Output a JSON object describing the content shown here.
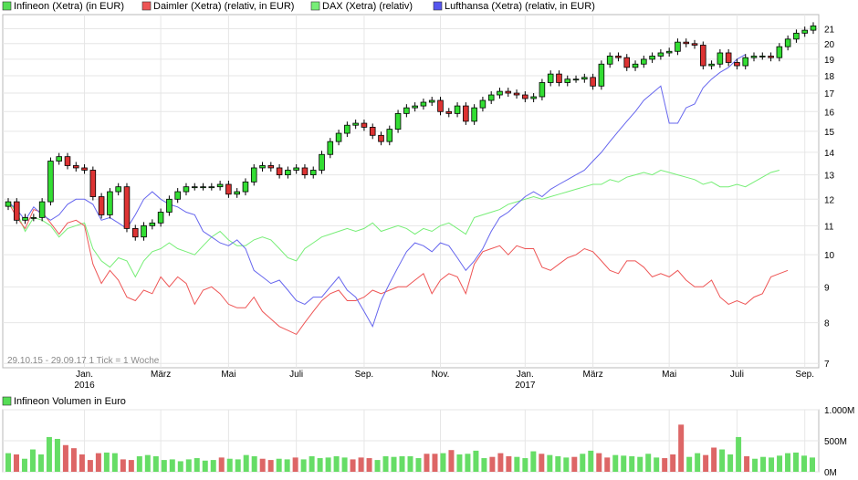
{
  "chart_data": [
    {
      "type": "candlestick",
      "legend": [
        {
          "label": "Infineon (Xetra) (in EUR)",
          "color": "#55dd55"
        },
        {
          "label": "Daimler (Xetra) (relativ, in EUR)",
          "color": "#ee5555"
        },
        {
          "label": "DAX (Xetra) (relativ)",
          "color": "#77ee77"
        },
        {
          "label": "Lufthansa (Xetra) (relativ, in EUR)",
          "color": "#5555ee"
        }
      ],
      "info": "29.10.15 - 29.09.17   1 Tick = 1 Woche",
      "x_tick_labels": [
        "Jan.",
        "März",
        "Mai",
        "Juli",
        "Sep.",
        "Nov.",
        "Jan.",
        "März",
        "Mai",
        "Juli",
        "Sep."
      ],
      "x_tick_weeks": [
        9,
        18,
        26,
        34,
        42,
        51,
        61,
        69,
        78,
        86,
        94
      ],
      "year_labels": [
        {
          "label": "2016",
          "week": 9
        },
        {
          "label": "2017",
          "week": 61
        }
      ],
      "y_scale": "log",
      "ylim": [
        6.9,
        22
      ],
      "y_ticks": [
        7,
        8,
        9,
        10,
        11,
        12,
        13,
        14,
        15,
        16,
        17,
        18,
        19,
        20,
        21
      ],
      "candle_up_color": "#33dd33",
      "candle_down_color": "#dd3333",
      "infineon_close": [
        11.9,
        11.2,
        11.3,
        11.3,
        11.9,
        13.6,
        13.8,
        13.4,
        13.3,
        13.2,
        12.1,
        11.4,
        12.3,
        12.5,
        10.9,
        10.6,
        11.0,
        11.1,
        11.5,
        12.0,
        12.3,
        12.5,
        12.5,
        12.5,
        12.5,
        12.6,
        12.2,
        12.3,
        12.7,
        13.3,
        13.4,
        13.3,
        13.0,
        13.2,
        13.3,
        13.0,
        13.2,
        13.9,
        14.5,
        14.9,
        15.3,
        15.4,
        15.2,
        14.8,
        14.5,
        15.1,
        15.9,
        16.2,
        16.3,
        16.5,
        16.6,
        16.0,
        15.9,
        16.3,
        15.5,
        16.2,
        16.6,
        16.9,
        17.1,
        17.0,
        16.9,
        16.7,
        16.8,
        17.6,
        18.1,
        17.6,
        17.8,
        17.8,
        17.9,
        17.4,
        18.7,
        19.2,
        19.1,
        18.5,
        18.7,
        19.0,
        19.2,
        19.4,
        19.5,
        20.1,
        20.0,
        19.9,
        18.6,
        18.7,
        19.4,
        18.8,
        18.6,
        19.1,
        19.2,
        19.2,
        19.1,
        19.8,
        20.3,
        20.7,
        20.9,
        21.2
      ],
      "daimler_rel": [
        11.9,
        11.3,
        10.9,
        11.6,
        11.5,
        11.1,
        10.7,
        11.1,
        11.2,
        11.0,
        9.7,
        9.1,
        9.5,
        9.2,
        8.7,
        8.6,
        8.9,
        8.8,
        9.3,
        9.0,
        9.3,
        9.1,
        8.5,
        8.9,
        9.0,
        8.8,
        8.5,
        8.4,
        8.4,
        8.7,
        8.3,
        8.1,
        7.9,
        7.8,
        7.7,
        8.0,
        8.3,
        8.6,
        8.8,
        8.9,
        8.6,
        8.6,
        8.7,
        8.9,
        8.8,
        8.9,
        9.0,
        9.0,
        9.2,
        9.4,
        8.8,
        9.2,
        9.4,
        9.3,
        8.8,
        9.7,
        10.1,
        10.2,
        10.3,
        10.0,
        10.3,
        10.2,
        10.2,
        9.6,
        9.5,
        9.7,
        9.9,
        10.0,
        10.2,
        10.1,
        9.8,
        9.5,
        9.4,
        9.8,
        9.8,
        9.6,
        9.3,
        9.4,
        9.3,
        9.5,
        9.2,
        9.0,
        9.0,
        9.2,
        8.7,
        8.5,
        8.6,
        8.5,
        8.7,
        8.8,
        9.3,
        9.4,
        9.5
      ],
      "dax_rel": [
        11.9,
        11.5,
        10.8,
        11.3,
        11.2,
        11.0,
        10.6,
        10.9,
        11.0,
        11.1,
        10.2,
        9.8,
        9.6,
        9.9,
        9.8,
        9.3,
        9.8,
        10.1,
        10.2,
        10.4,
        10.2,
        10.1,
        10.0,
        10.3,
        10.6,
        10.8,
        10.5,
        10.3,
        10.3,
        10.5,
        10.6,
        10.5,
        10.2,
        9.9,
        9.8,
        10.2,
        10.4,
        10.6,
        10.7,
        10.8,
        10.9,
        10.8,
        10.9,
        11.1,
        10.8,
        10.9,
        11.0,
        10.9,
        10.7,
        10.9,
        10.8,
        11.0,
        11.1,
        10.9,
        10.7,
        11.3,
        11.4,
        11.5,
        11.6,
        11.8,
        11.9,
        12.0,
        12.1,
        12.0,
        12.1,
        12.2,
        12.3,
        12.4,
        12.5,
        12.6,
        12.6,
        12.8,
        12.7,
        12.9,
        13.0,
        13.1,
        13.0,
        13.2,
        13.1,
        13.0,
        12.9,
        12.8,
        12.6,
        12.7,
        12.5,
        12.5,
        12.6,
        12.5,
        12.7,
        12.9,
        13.1,
        13.2
      ],
      "lufthansa_rel": [
        11.9,
        11.6,
        11.2,
        11.7,
        11.4,
        11.2,
        11.4,
        11.8,
        12.0,
        12.0,
        11.8,
        11.2,
        11.3,
        11.1,
        10.9,
        11.4,
        12.0,
        12.3,
        12.0,
        11.8,
        11.7,
        11.5,
        11.4,
        10.8,
        10.6,
        10.4,
        10.3,
        10.5,
        10.2,
        9.5,
        9.3,
        9.1,
        9.2,
        8.9,
        8.6,
        8.5,
        8.7,
        8.7,
        9.0,
        9.3,
        8.9,
        8.7,
        8.3,
        7.9,
        8.6,
        9.1,
        9.6,
        10.1,
        10.4,
        10.3,
        10.1,
        10.4,
        10.3,
        9.9,
        9.5,
        9.8,
        10.2,
        10.8,
        11.3,
        11.5,
        11.8,
        12.1,
        12.3,
        12.1,
        12.4,
        12.6,
        12.8,
        13.0,
        13.2,
        13.6,
        14.0,
        14.5,
        15.0,
        15.5,
        16.0,
        16.6,
        17.0,
        17.4,
        15.4,
        15.4,
        16.2,
        16.4,
        17.3,
        17.8,
        18.2,
        18.5,
        19.0,
        19.3
      ],
      "markers_note": ""
    },
    {
      "type": "bar",
      "legend": [
        {
          "label": "Infineon Volumen in Euro",
          "color": "#55dd55"
        }
      ],
      "y_tick_labels": [
        "1.000M",
        "500M",
        "0M"
      ],
      "ylim": [
        0,
        1000
      ],
      "volume_m": [
        300,
        280,
        210,
        360,
        280,
        560,
        530,
        430,
        380,
        280,
        190,
        300,
        310,
        300,
        200,
        190,
        250,
        270,
        250,
        190,
        200,
        170,
        200,
        220,
        180,
        190,
        230,
        210,
        200,
        270,
        250,
        210,
        190,
        210,
        200,
        230,
        200,
        250,
        220,
        230,
        250,
        230,
        200,
        230,
        220,
        190,
        250,
        240,
        250,
        250,
        220,
        290,
        290,
        300,
        350,
        280,
        290,
        340,
        220,
        240,
        300,
        250,
        240,
        220,
        330,
        290,
        270,
        250,
        230,
        240,
        290,
        340,
        300,
        230,
        270,
        260,
        250,
        240,
        290,
        230,
        220,
        280,
        760,
        240,
        300,
        270,
        390,
        360,
        280,
        560,
        250,
        210,
        240,
        230,
        260,
        300,
        310,
        260,
        230
      ]
    }
  ]
}
